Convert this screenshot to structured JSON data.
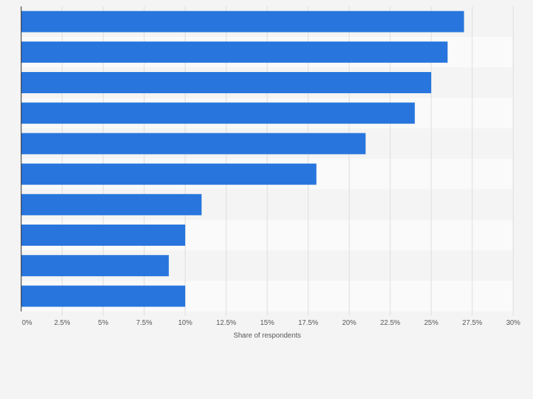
{
  "chart_data": {
    "type": "bar",
    "orientation": "horizontal",
    "categories": [
      "",
      "",
      "",
      "",
      "",
      "",
      "",
      "",
      "",
      ""
    ],
    "values": [
      27,
      26,
      25,
      24,
      21,
      18,
      11,
      10,
      9,
      10
    ],
    "xlabel": "Share of respondents",
    "ylabel": "",
    "xlim": [
      0,
      30
    ],
    "ticks": [
      0,
      2.5,
      5,
      7.5,
      10,
      12.5,
      15,
      17.5,
      20,
      22.5,
      25,
      27.5,
      30
    ],
    "tick_labels": [
      "0%",
      "2.5%",
      "5%",
      "7.5%",
      "10%",
      "12.5%",
      "15%",
      "17.5%",
      "20%",
      "22.5%",
      "25%",
      "27.5%",
      "30%"
    ],
    "grid": true,
    "legend": "none",
    "bar_color": "#2876dd",
    "band_colors": [
      "#f4f4f4",
      "#fafafa"
    ],
    "background_color": "#f4f4f4",
    "gridline_color": "#dcdcdc",
    "axis_color": "#222222"
  }
}
